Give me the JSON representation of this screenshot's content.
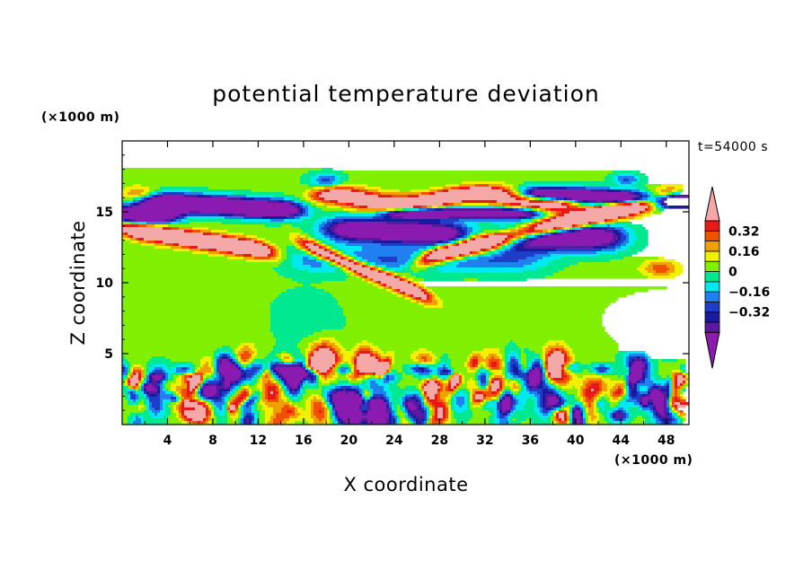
{
  "chart_data": {
    "type": "heatmap",
    "title": "potential temperature deviation",
    "xlabel": "X coordinate",
    "ylabel": "Z coordinate",
    "x_unit": "(×1000 m)",
    "y_unit": "(×1000 m)",
    "time_label": "t=54000 s",
    "xlim": [
      0,
      50
    ],
    "ylim": [
      0,
      20
    ],
    "x_ticks": [
      4,
      8,
      12,
      16,
      20,
      24,
      28,
      32,
      36,
      40,
      44,
      48
    ],
    "y_ticks": [
      5,
      10,
      15
    ],
    "colorbar": {
      "levels": [
        -0.48,
        -0.4,
        -0.32,
        -0.24,
        -0.16,
        -0.08,
        0,
        0.08,
        0.16,
        0.24,
        0.32,
        0.4
      ],
      "labeled": [
        0.32,
        0.16,
        0,
        -0.16,
        -0.32
      ],
      "labels": [
        "0.32",
        "0.16",
        "0",
        "−0.16",
        "−0.32"
      ],
      "colors": [
        "#8a1ab0",
        "#5a1aa0",
        "#1a1aa0",
        "#1e3ec8",
        "#2080f0",
        "#00e8f0",
        "#00e890",
        "#80f000",
        "#f0f000",
        "#f0a000",
        "#f05000",
        "#e81818",
        "#f4a8a8"
      ],
      "extend": "both"
    },
    "structures": [
      {
        "kind": "warm",
        "x": [
          0,
          14
        ],
        "z": [
          12,
          14
        ]
      },
      {
        "kind": "warm",
        "x": [
          16,
          28
        ],
        "z": [
          8.5,
          12
        ]
      },
      {
        "kind": "warm",
        "x": [
          18,
          40
        ],
        "z": [
          15,
          17
        ]
      },
      {
        "kind": "warm",
        "x": [
          28,
          50
        ],
        "z": [
          11.5,
          16
        ]
      },
      {
        "kind": "cold",
        "x": [
          0,
          50
        ],
        "z": [
          14,
          17
        ]
      },
      {
        "kind": "cold",
        "x": [
          18,
          44
        ],
        "z": [
          12,
          15
        ]
      },
      {
        "kind": "turbulent",
        "x": [
          0,
          50
        ],
        "z": [
          0,
          5
        ]
      }
    ]
  }
}
